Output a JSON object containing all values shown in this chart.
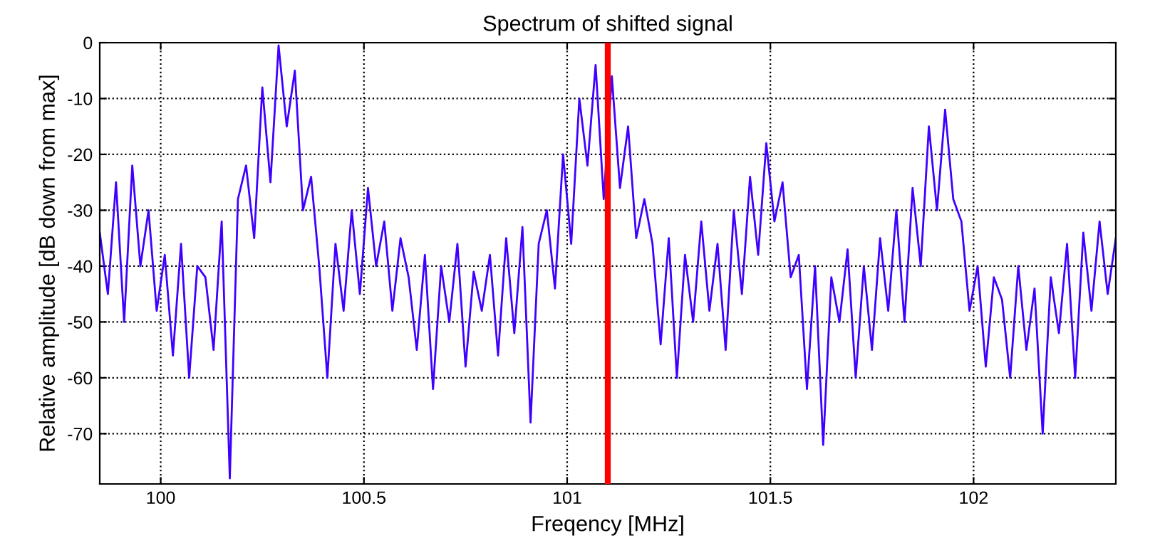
{
  "chart_data": {
    "type": "line",
    "title": "Spectrum of shifted signal",
    "xlabel": "Freqency [MHz]",
    "ylabel": "Relative amplitude [dB down from max]",
    "x": [
      99.85,
      99.87,
      99.89,
      99.91,
      99.93,
      99.95,
      99.97,
      99.99,
      100.01,
      100.03,
      100.05,
      100.07,
      100.09,
      100.11,
      100.13,
      100.15,
      100.17,
      100.19,
      100.21,
      100.23,
      100.25,
      100.27,
      100.29,
      100.31,
      100.33,
      100.35,
      100.37,
      100.39,
      100.41,
      100.43,
      100.45,
      100.47,
      100.49,
      100.51,
      100.53,
      100.55,
      100.57,
      100.59,
      100.61,
      100.63,
      100.65,
      100.67,
      100.69,
      100.71,
      100.73,
      100.75,
      100.77,
      100.79,
      100.81,
      100.83,
      100.85,
      100.87,
      100.89,
      100.91,
      100.93,
      100.95,
      100.97,
      100.99,
      101.01,
      101.03,
      101.05,
      101.07,
      101.09,
      101.11,
      101.13,
      101.15,
      101.17,
      101.19,
      101.21,
      101.23,
      101.25,
      101.27,
      101.29,
      101.31,
      101.33,
      101.35,
      101.37,
      101.39,
      101.41,
      101.43,
      101.45,
      101.47,
      101.49,
      101.51,
      101.53,
      101.55,
      101.57,
      101.59,
      101.61,
      101.63,
      101.65,
      101.67,
      101.69,
      101.71,
      101.73,
      101.75,
      101.77,
      101.79,
      101.81,
      101.83,
      101.85,
      101.87,
      101.89,
      101.91,
      101.93,
      101.95,
      101.97,
      101.99,
      102.01,
      102.03,
      102.05,
      102.07,
      102.09,
      102.11,
      102.13,
      102.15,
      102.17,
      102.19,
      102.21,
      102.23,
      102.25,
      102.27,
      102.29,
      102.31,
      102.33,
      102.35
    ],
    "series": [
      {
        "color": "#3f00ff",
        "values": [
          -34,
          -45,
          -25,
          -50,
          -22,
          -40,
          -30,
          -48,
          -38,
          -56,
          -36,
          -60,
          -40,
          -42,
          -55,
          -32,
          -78,
          -28,
          -22,
          -35,
          -8,
          -25,
          -0.5,
          -15,
          -5,
          -30,
          -24,
          -40,
          -60,
          -36,
          -48,
          -30,
          -45,
          -26,
          -40,
          -32,
          -48,
          -35,
          -42,
          -55,
          -38,
          -62,
          -40,
          -50,
          -36,
          -58,
          -41,
          -48,
          -38,
          -56,
          -35,
          -52,
          -33,
          -68,
          -36,
          -30,
          -44,
          -20,
          -36,
          -10,
          -22,
          -4,
          -28,
          -6,
          -26,
          -15,
          -35,
          -28,
          -36,
          -54,
          -35,
          -60,
          -38,
          -50,
          -32,
          -48,
          -36,
          -55,
          -30,
          -45,
          -24,
          -38,
          -18,
          -32,
          -25,
          -42,
          -38,
          -62,
          -40,
          -72,
          -42,
          -50,
          -37,
          -60,
          -40,
          -55,
          -35,
          -48,
          -30,
          -50,
          -26,
          -40,
          -15,
          -30,
          -12,
          -28,
          -32,
          -48,
          -40,
          -58,
          -42,
          -46,
          -60,
          -40,
          -55,
          -44,
          -70,
          -42,
          -52,
          -36,
          -60,
          -34,
          -48,
          -32,
          -45,
          -35
        ]
      }
    ],
    "ref_lines": [
      {
        "axis": "x",
        "value": 101.1,
        "color": "#ff0000"
      }
    ],
    "xlim": [
      99.85,
      102.35
    ],
    "xticks": [
      100,
      100.5,
      101,
      101.5,
      102
    ],
    "ylim": [
      -79,
      0
    ],
    "yticks": [
      -70,
      -60,
      -50,
      -40,
      -30,
      -20,
      -10,
      0
    ],
    "grid": true,
    "line_style": "solid",
    "marker": "none"
  }
}
